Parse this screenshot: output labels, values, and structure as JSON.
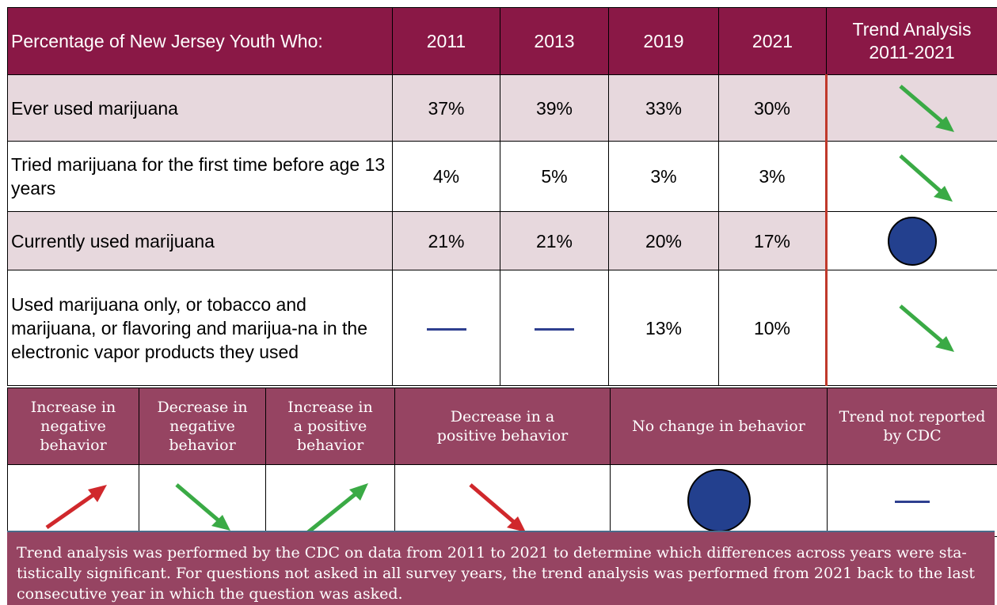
{
  "table": {
    "header_label": "Percentage of New Jersey Youth Who:",
    "years": [
      "2011",
      "2013",
      "2019",
      "2021"
    ],
    "trend_header": "Trend Analysis 2011-2021",
    "rows": [
      {
        "label": "Ever used marijuana",
        "values": [
          "37%",
          "39%",
          "33%",
          "30%"
        ],
        "trend": "decrease-in-negative-behavior"
      },
      {
        "label": "Tried marijuana for the first time before age 13 years",
        "values": [
          "4%",
          "5%",
          "3%",
          "3%"
        ],
        "trend": "decrease-in-negative-behavior"
      },
      {
        "label": "Currently used marijuana",
        "values": [
          "21%",
          "21%",
          "20%",
          "17%"
        ],
        "trend": "no-change"
      },
      {
        "label": "Used marijuana only, or tobacco and marijuana, or flavoring and marijua-na in the electronic vapor products they used",
        "values": [
          null,
          null,
          "13%",
          "10%"
        ],
        "trend": "decrease-in-negative-behavior"
      }
    ]
  },
  "legend": [
    {
      "label": "Increase in negative behavior",
      "icon": "arrow-up-red"
    },
    {
      "label": "Decrease in negative behavior",
      "icon": "arrow-down-green"
    },
    {
      "label": "Increase in a positive behavior",
      "icon": "arrow-up-green"
    },
    {
      "label": "Decrease in a positive behavior",
      "icon": "arrow-down-red"
    },
    {
      "label": "No change in behavior",
      "icon": "circle-blue"
    },
    {
      "label": "Trend not reported by CDC",
      "icon": "dash-blue"
    }
  ],
  "note": "Trend analysis was performed by the CDC on data from 2011 to 2021 to determine which differences across years were sta-tistically significant. For questions not asked in all survey years, the trend analysis was performed from 2021 back to the last consecutive year in which the question was asked.",
  "colors": {
    "header_bg": "#8a1846",
    "legend_bg": "#964462",
    "row_shade": "#e7d8dd",
    "green_arrow": "#3aaa45",
    "red_arrow": "#d0282c",
    "circle_blue": "#23408e",
    "dash_blue": "#2e3f8f",
    "trend_divider": "#c0392b"
  }
}
